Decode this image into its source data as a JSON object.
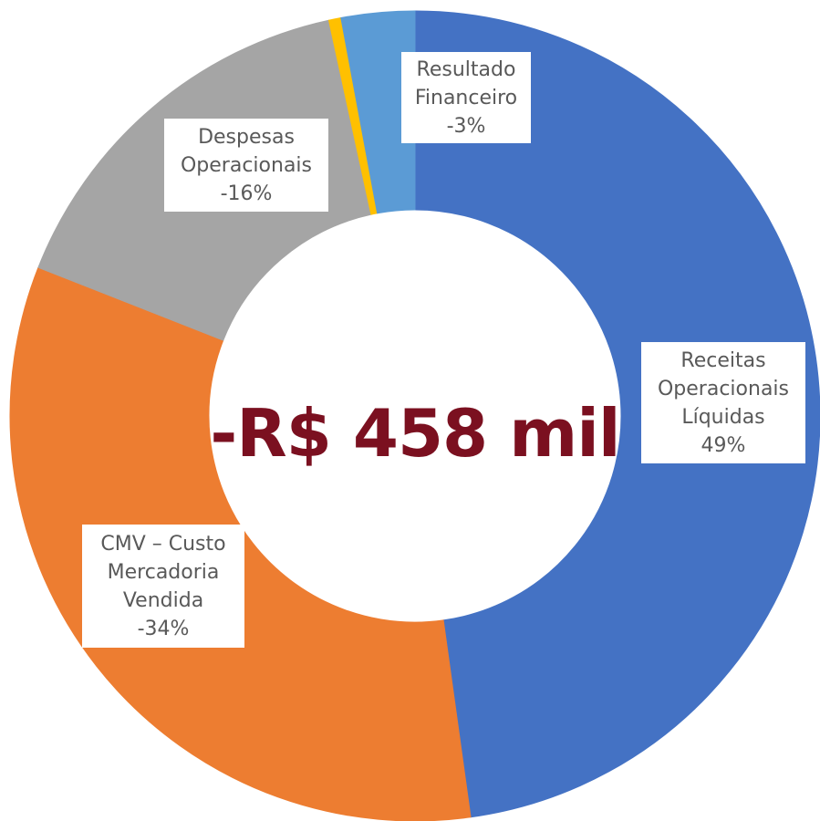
{
  "chart_data": {
    "type": "donut",
    "center_label": "-R$ 458 mil",
    "categories": [
      "Receitas Operacionais Líquidas",
      "CMV – Custo Mercadoria Vendida",
      "Despesas Operacionais",
      null,
      "Resultado Financeiro"
    ],
    "values": [
      49,
      -34,
      -16,
      0.5,
      -3
    ],
    "value_labels": [
      "49%",
      "-34%",
      "-16%",
      null,
      "-3%"
    ],
    "colors": [
      "#4472c4",
      "#ed7d31",
      "#a5a5a5",
      "#ffc000",
      "#5b9bd5"
    ]
  }
}
